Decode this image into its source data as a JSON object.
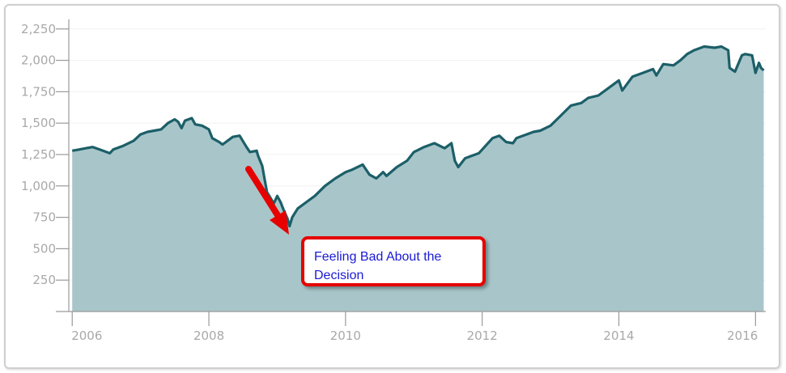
{
  "chart_data": {
    "type": "area",
    "title": "",
    "xlabel": "",
    "ylabel": "",
    "xlim": [
      2005.95,
      2016.15
    ],
    "ylim": [
      0,
      2300
    ],
    "x_ticks": [
      2006,
      2008,
      2010,
      2012,
      2014,
      2016
    ],
    "y_ticks": [
      250,
      500,
      750,
      1000,
      1250,
      1500,
      1750,
      2000,
      2250
    ],
    "y_tick_labels": [
      "250",
      "500",
      "750",
      "1,000",
      "1,250",
      "1,500",
      "1,750",
      "2,000",
      "2,250"
    ],
    "x_tick_labels": [
      "2006",
      "2008",
      "2010",
      "2012",
      "2014",
      "2016"
    ],
    "grid": "horizontal",
    "legend": "none",
    "line_color": "#1c5f68",
    "fill_color": "#a8c6ca",
    "series": [
      {
        "x": [
          2006.0,
          2006.1,
          2006.2,
          2006.3,
          2006.35,
          2006.45,
          2006.55,
          2006.6,
          2006.75,
          2006.9,
          2007.0,
          2007.1,
          2007.2,
          2007.3,
          2007.4,
          2007.5,
          2007.55,
          2007.6,
          2007.65,
          2007.75,
          2007.8,
          2007.9,
          2008.0,
          2008.05,
          2008.15,
          2008.2,
          2008.35,
          2008.45,
          2008.55,
          2008.6,
          2008.7,
          2008.72,
          2008.78,
          2008.85,
          2008.95,
          2009.0,
          2009.05,
          2009.1,
          2009.15,
          2009.18,
          2009.22,
          2009.3,
          2009.45,
          2009.55,
          2009.7,
          2009.85,
          2010.0,
          2010.1,
          2010.25,
          2010.35,
          2010.45,
          2010.55,
          2010.6,
          2010.75,
          2010.9,
          2011.0,
          2011.15,
          2011.3,
          2011.45,
          2011.55,
          2011.6,
          2011.65,
          2011.75,
          2011.85,
          2011.95,
          2012.0,
          2012.15,
          2012.25,
          2012.35,
          2012.45,
          2012.5,
          2012.65,
          2012.75,
          2012.85,
          2013.0,
          2013.15,
          2013.3,
          2013.45,
          2013.55,
          2013.7,
          2013.85,
          2014.0,
          2014.05,
          2014.2,
          2014.35,
          2014.5,
          2014.55,
          2014.65,
          2014.8,
          2014.9,
          2015.0,
          2015.1,
          2015.25,
          2015.4,
          2015.5,
          2015.6,
          2015.62,
          2015.7,
          2015.8,
          2015.85,
          2015.95,
          2016.0,
          2016.05,
          2016.08,
          2016.12
        ],
        "values": [
          1280,
          1290,
          1300,
          1310,
          1300,
          1280,
          1260,
          1290,
          1320,
          1360,
          1410,
          1430,
          1440,
          1450,
          1500,
          1530,
          1510,
          1460,
          1520,
          1540,
          1490,
          1480,
          1450,
          1380,
          1350,
          1330,
          1390,
          1400,
          1310,
          1270,
          1280,
          1240,
          1160,
          950,
          860,
          920,
          870,
          800,
          740,
          680,
          750,
          820,
          880,
          920,
          1000,
          1060,
          1110,
          1130,
          1170,
          1090,
          1060,
          1110,
          1080,
          1150,
          1200,
          1270,
          1310,
          1340,
          1300,
          1340,
          1200,
          1150,
          1220,
          1240,
          1260,
          1290,
          1380,
          1400,
          1350,
          1340,
          1380,
          1410,
          1430,
          1440,
          1480,
          1560,
          1640,
          1660,
          1700,
          1720,
          1780,
          1840,
          1760,
          1870,
          1900,
          1930,
          1880,
          1970,
          1960,
          2000,
          2050,
          2080,
          2110,
          2100,
          2110,
          2080,
          1940,
          1910,
          2040,
          2050,
          2040,
          1900,
          1980,
          1940,
          1920
        ]
      }
    ]
  },
  "annotation": {
    "text_line1": "Feeling Bad About the",
    "text_line2": "Decision",
    "arrow_color": "#e60000"
  }
}
